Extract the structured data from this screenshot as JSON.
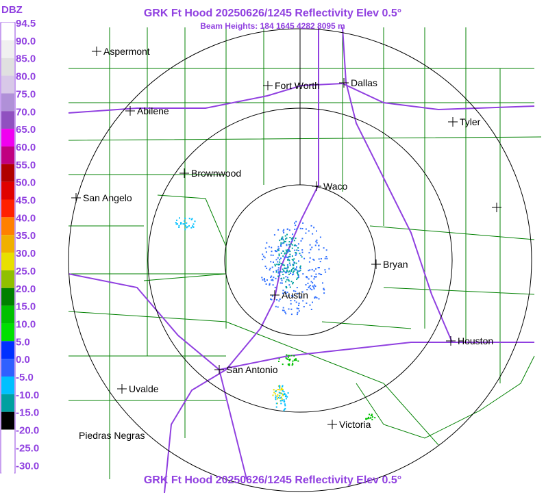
{
  "header": {
    "title": "GRK Ft Hood 20250626/1245 Reflectivity Elev 0.5°",
    "subtitle": "Beam Heights: 184 1645 4282 8095 m"
  },
  "footer": {
    "title": "GRK Ft Hood 20250626/1245 Reflectivity Elev 0.5°"
  },
  "legend": {
    "unit": "DBZ",
    "labels": [
      "94.5",
      "90.0",
      "85.0",
      "80.0",
      "75.0",
      "70.0",
      "65.0",
      "60.0",
      "55.0",
      "50.0",
      "45.0",
      "40.0",
      "35.0",
      "30.0",
      "25.0",
      "20.0",
      "15.0",
      "10.0",
      "5.0",
      "0.0",
      "-5.0",
      "-10.0",
      "-15.0",
      "-20.0",
      "-25.0",
      "-30.0"
    ],
    "colors": [
      "#ffffff",
      "#f0f0f0",
      "#e0e0e0",
      "#d8c8e8",
      "#b090d8",
      "#9050c0",
      "#f000f0",
      "#c00080",
      "#b00000",
      "#e00000",
      "#ff2000",
      "#ff8000",
      "#f0b000",
      "#e8e000",
      "#90c000",
      "#008000",
      "#00c000",
      "#00e000",
      "#0030ff",
      "#3060ff",
      "#00c0ff",
      "#00a0a0",
      "#000000",
      "#ffffff",
      "#ffffff",
      "#ffffff"
    ]
  },
  "cities": [
    {
      "name": "Aspermont"
    },
    {
      "name": "Fort Worth"
    },
    {
      "name": "Dallas"
    },
    {
      "name": "Abilene"
    },
    {
      "name": "Tyler"
    },
    {
      "name": "Brownwood"
    },
    {
      "name": "Waco"
    },
    {
      "name": "San Angelo"
    },
    {
      "name": "Bryan"
    },
    {
      "name": "Austin"
    },
    {
      "name": "Houston"
    },
    {
      "name": "San Antonio"
    },
    {
      "name": "Uvalde"
    },
    {
      "name": "Victoria"
    },
    {
      "name": "Piedras Negras"
    }
  ]
}
